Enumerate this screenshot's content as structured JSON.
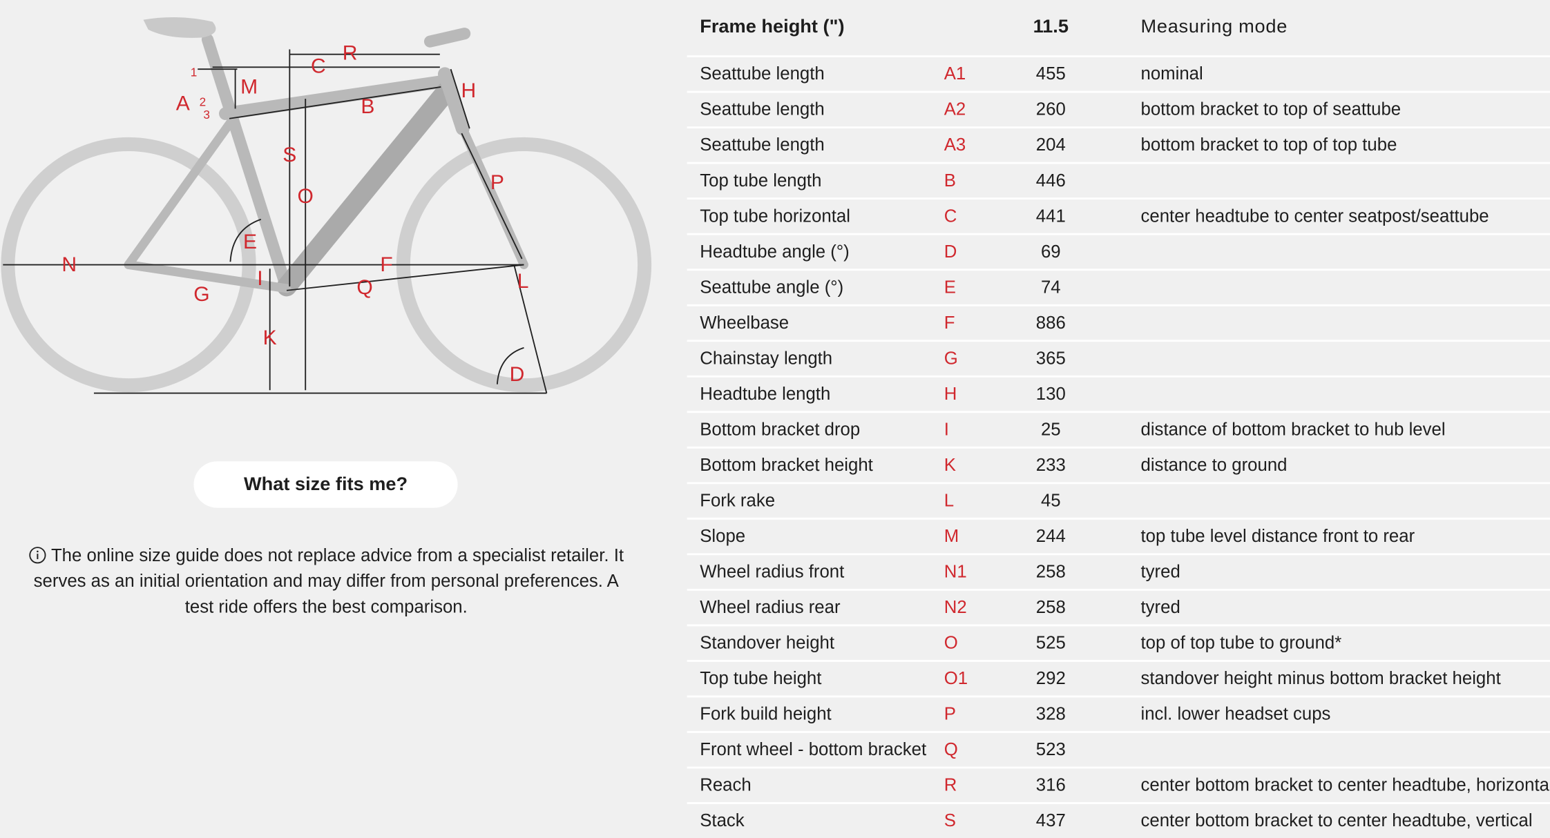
{
  "diagram": {
    "labels": [
      "R",
      "C",
      "H",
      "M",
      "A",
      "1",
      "2",
      "3",
      "B",
      "S",
      "O",
      "P",
      "E",
      "N",
      "F",
      "I",
      "L",
      "G",
      "Q",
      "K",
      "D"
    ]
  },
  "button": "What size fits me?",
  "notice": "The online size guide does not replace advice from a specialist retailer. It serves as an initial orientation and may differ from personal preferences. A test ride offers the best comparison.",
  "table": {
    "header": {
      "name": "Frame height (\")",
      "value": 11.5,
      "mode": "Measuring mode"
    },
    "rows": [
      {
        "name": "Seattube length",
        "code": "A1",
        "value": 455,
        "mode": "nominal"
      },
      {
        "name": "Seattube length",
        "code": "A2",
        "value": 260,
        "mode": "bottom bracket to top of seattube"
      },
      {
        "name": "Seattube length",
        "code": "A3",
        "value": 204,
        "mode": "bottom bracket to top of top tube"
      },
      {
        "name": "Top tube length",
        "code": "B",
        "value": 446
      },
      {
        "name": "Top tube horizontal",
        "code": "C",
        "value": 441,
        "mode": "center headtube to center seatpost/seattube"
      },
      {
        "name": "Headtube angle (°)",
        "code": "D",
        "value": 69
      },
      {
        "name": "Seattube angle (°)",
        "code": "E",
        "value": 74
      },
      {
        "name": "Wheelbase",
        "code": "F",
        "value": 886
      },
      {
        "name": "Chainstay length",
        "code": "G",
        "value": 365
      },
      {
        "name": "Headtube length",
        "code": "H",
        "value": 130
      },
      {
        "name": "Bottom bracket drop",
        "code": "I",
        "value": 25,
        "mode": "distance of bottom bracket to hub level"
      },
      {
        "name": "Bottom bracket height",
        "code": "K",
        "value": 233,
        "mode": "distance to ground"
      },
      {
        "name": "Fork rake",
        "code": "L",
        "value": 45
      },
      {
        "name": "Slope",
        "code": "M",
        "value": 244,
        "mode": "top tube level distance front to rear"
      },
      {
        "name": "Wheel radius front",
        "code": "N1",
        "value": 258,
        "mode": "tyred"
      },
      {
        "name": "Wheel radius rear",
        "code": "N2",
        "value": 258,
        "mode": "tyred"
      },
      {
        "name": "Standover height",
        "code": "O",
        "value": 525,
        "mode": "top of top tube to ground*"
      },
      {
        "name": "Top tube height",
        "code": "O1",
        "value": 292,
        "mode": "standover height minus bottom bracket height"
      },
      {
        "name": "Fork build height",
        "code": "P",
        "value": 328,
        "mode": "incl. lower headset cups"
      },
      {
        "name": "Front wheel - bottom bracket",
        "code": "Q",
        "value": 523
      },
      {
        "name": "Reach",
        "code": "R",
        "value": 316,
        "mode": "center bottom bracket to center headtube, horizontal"
      },
      {
        "name": "Stack",
        "code": "S",
        "value": 437,
        "mode": "center bottom bracket to center headtube, vertical"
      }
    ]
  }
}
